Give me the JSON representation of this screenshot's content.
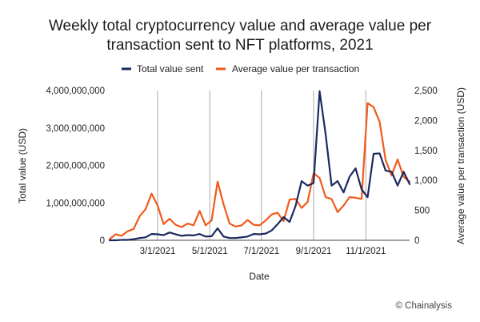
{
  "chart_data": {
    "type": "line",
    "title": [
      "Weekly total cryptocurrency value and average value per",
      "transaction sent to NFT platforms, 2021"
    ],
    "xlabel": "Date",
    "ylabel_left": "Total value (USD)",
    "ylabel_right": "Average value per transaction (USD)",
    "ylim_left": [
      0,
      4000000000
    ],
    "ylim_right": [
      0,
      2500
    ],
    "x_tick_labels": [
      "3/1/2021",
      "5/1/2021",
      "7/1/2021",
      "9/1/2021",
      "11/1/2021"
    ],
    "x_tick_positions": [
      8,
      16.7,
      25.3,
      34,
      42.7
    ],
    "x_range": [
      0,
      50
    ],
    "y_tick_labels_left": [
      "0",
      "1,000,000,000",
      "2,000,000,000",
      "3,000,000,000",
      "4,000,000,000"
    ],
    "y_tick_labels_right": [
      "0",
      "500",
      "1,000",
      "1,500",
      "2,000",
      "2,500"
    ],
    "grid": "vertical",
    "legend_position": "top",
    "credit": "© Chainalysis",
    "series": [
      {
        "name": "Total value sent",
        "axis": "left",
        "color": "#1a2a5e",
        "values": [
          0,
          0,
          10000000,
          10000000,
          30000000,
          60000000,
          80000000,
          170000000,
          160000000,
          140000000,
          210000000,
          160000000,
          120000000,
          140000000,
          130000000,
          170000000,
          100000000,
          110000000,
          320000000,
          100000000,
          60000000,
          60000000,
          80000000,
          100000000,
          170000000,
          160000000,
          180000000,
          260000000,
          430000000,
          620000000,
          490000000,
          920000000,
          1580000000,
          1460000000,
          1530000000,
          3980000000,
          2840000000,
          1460000000,
          1580000000,
          1280000000,
          1700000000,
          1920000000,
          1360000000,
          1150000000,
          2310000000,
          2320000000,
          1860000000,
          1830000000,
          1460000000,
          1830000000,
          1500000000
        ]
      },
      {
        "name": "Average value per transaction",
        "axis": "right",
        "color": "#f05a1a",
        "values": [
          20,
          100,
          75,
          150,
          190,
          400,
          520,
          780,
          580,
          270,
          360,
          260,
          220,
          280,
          250,
          490,
          250,
          330,
          980,
          600,
          280,
          230,
          250,
          340,
          260,
          250,
          330,
          430,
          460,
          320,
          680,
          690,
          540,
          640,
          1120,
          1040,
          720,
          690,
          470,
          580,
          720,
          710,
          690,
          2290,
          2220,
          1980,
          1340,
          1080,
          1350,
          1060,
          980
        ]
      }
    ]
  }
}
